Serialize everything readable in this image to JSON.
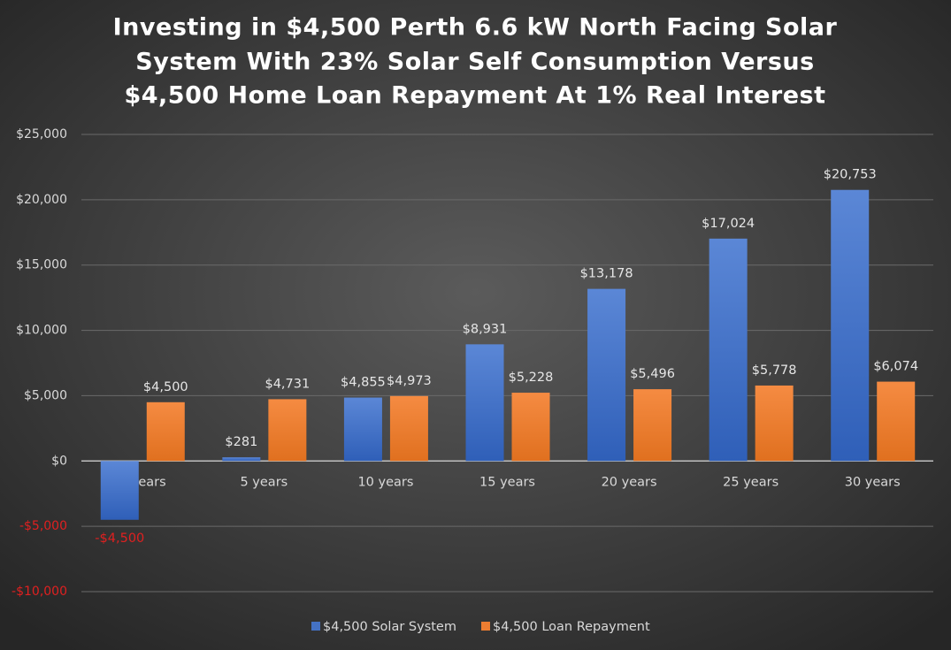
{
  "chart_data": {
    "type": "bar",
    "title": [
      "Investing in $4,500 Perth 6.6 kW North Facing Solar",
      "System With 23% Solar Self Consumption Versus",
      "$4,500 Home Loan Repayment At 1% Real Interest"
    ],
    "categories": [
      "0 years",
      "5 years",
      "10 years",
      "15 years",
      "20 years",
      "25 years",
      "30 years"
    ],
    "series": [
      {
        "name": "$4,500 Solar System",
        "color": "#4472c4",
        "values": [
          -4500,
          281,
          4855,
          8931,
          13178,
          17024,
          20753
        ],
        "value_labels": [
          "-$4,500",
          "$281",
          "$4,855",
          "$8,931",
          "$13,178",
          "$17,024",
          "$20,753"
        ]
      },
      {
        "name": "$4,500 Loan Repayment",
        "color": "#ed7d31",
        "values": [
          4500,
          4731,
          4973,
          5228,
          5496,
          5778,
          6074
        ],
        "value_labels": [
          "$4,500",
          "$4,731",
          "$4,973",
          "$5,228",
          "$5,496",
          "$5,778",
          "$6,074"
        ]
      }
    ],
    "ylim": [
      -10000,
      25000
    ],
    "yticks": [
      {
        "value": -10000,
        "label": "-$10,000"
      },
      {
        "value": -5000,
        "label": "-$5,000"
      },
      {
        "value": 0,
        "label": "$0"
      },
      {
        "value": 5000,
        "label": "$5,000"
      },
      {
        "value": 10000,
        "label": "$10,000"
      },
      {
        "value": 15000,
        "label": "$15,000"
      },
      {
        "value": 20000,
        "label": "$20,000"
      },
      {
        "value": 25000,
        "label": "$25,000"
      }
    ],
    "grid": true,
    "legend": "bottom"
  }
}
